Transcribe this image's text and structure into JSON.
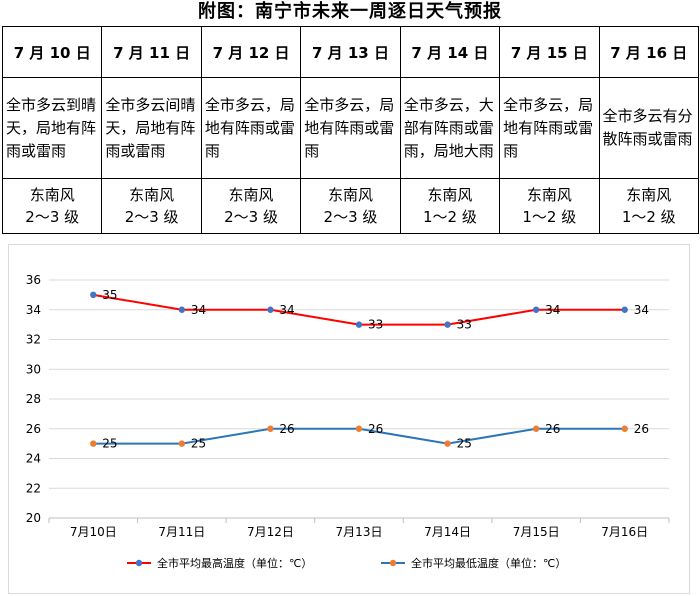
{
  "title": "附图：南宁市未来一周逐日天气预报",
  "days": [
    {
      "date": "7 月 10 日",
      "desc": "全市多云到晴天，局地有阵雨或雷雨",
      "wind_dir": "东南风",
      "wind_level": "2～3 级"
    },
    {
      "date": "7 月 11 日",
      "desc": "全市多云间晴天，局地有阵雨或雷雨",
      "wind_dir": "东南风",
      "wind_level": "2～3 级"
    },
    {
      "date": "7 月 12 日",
      "desc": "全市多云，局地有阵雨或雷雨",
      "wind_dir": "东南风",
      "wind_level": "2～3 级"
    },
    {
      "date": "7 月 13 日",
      "desc": "全市多云，局地有阵雨或雷雨",
      "wind_dir": "东南风",
      "wind_level": "2～3 级"
    },
    {
      "date": "7 月 14 日",
      "desc": "全市多云，大部有阵雨或雷雨，局地大雨",
      "wind_dir": "东南风",
      "wind_level": "1～2 级"
    },
    {
      "date": "7 月 15 日",
      "desc": "全市多云，局地有阵雨或雷雨",
      "wind_dir": "东南风",
      "wind_level": "1～2 级"
    },
    {
      "date": "7 月 16 日",
      "desc": "全市多云有分散阵雨或雷雨",
      "wind_dir": "东南风",
      "wind_level": "1～2 级"
    }
  ],
  "chart_data": {
    "type": "line",
    "categories": [
      "7月10日",
      "7月11日",
      "7月12日",
      "7月13日",
      "7月14日",
      "7月15日",
      "7月16日"
    ],
    "series": [
      {
        "name": "全市平均最高温度（单位：℃）",
        "values": [
          35,
          34,
          34,
          33,
          33,
          34,
          34
        ],
        "color": "#ff0000",
        "marker_color": "#4472c4"
      },
      {
        "name": "全市平均最低温度（单位：℃）",
        "values": [
          25,
          25,
          26,
          26,
          25,
          26,
          26
        ],
        "color": "#2e75b6",
        "marker_color": "#ed7d31"
      }
    ],
    "ylim": [
      20,
      36
    ],
    "yticks": [
      20,
      22,
      24,
      26,
      28,
      30,
      32,
      34,
      36
    ],
    "grid": true,
    "legend_position": "bottom",
    "data_labels": true,
    "xlabel": "",
    "ylabel": ""
  }
}
